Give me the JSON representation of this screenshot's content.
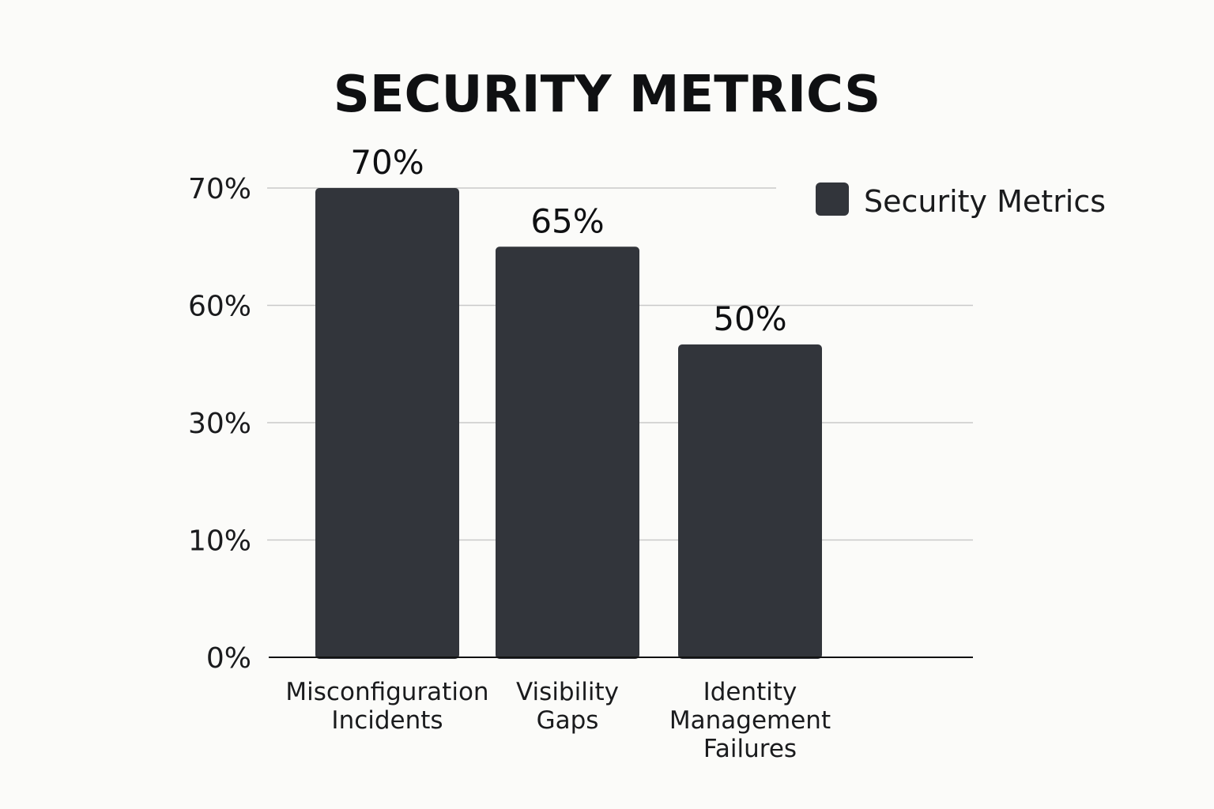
{
  "chart_data": {
    "type": "bar",
    "title": "SECURITY METRICS",
    "categories": [
      [
        "Misconfiguration",
        "Incidents"
      ],
      [
        "Visibility",
        "Gaps"
      ],
      [
        "Identity",
        "Management",
        "Failures"
      ]
    ],
    "series": [
      {
        "name": "Security Metrics",
        "values": [
          70,
          65,
          50
        ],
        "labels": [
          "70%",
          "65%",
          "50%"
        ],
        "color": "#32353b"
      }
    ],
    "y_ticks": [
      {
        "value": 0,
        "label": "0%"
      },
      {
        "value": 10,
        "label": "10%"
      },
      {
        "value": 30,
        "label": "30%"
      },
      {
        "value": 60,
        "label": "60%"
      },
      {
        "value": 70,
        "label": "70%"
      }
    ],
    "grid": true,
    "legend": "top-right",
    "colors": {
      "bar": "#32353b",
      "grid": "#c9c9c9",
      "axis": "#111111",
      "background": "#fbfbf9"
    }
  }
}
